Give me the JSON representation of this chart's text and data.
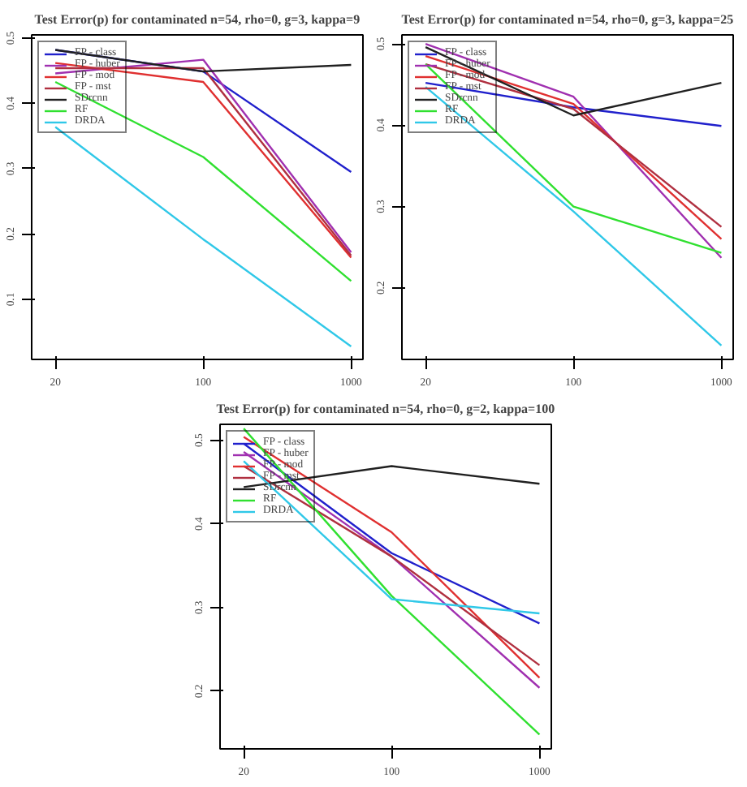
{
  "chart_data": [
    {
      "type": "line",
      "title": "Test Error(p) for contaminated n=54, rho=0, g=3, kappa=9",
      "categories": [
        "20",
        "100",
        "1000"
      ],
      "ylim": [
        0.008,
        0.505
      ],
      "yticks": [
        0.1,
        0.2,
        0.3,
        0.4,
        0.5
      ],
      "grid": false,
      "legend": "top left",
      "marker": "none",
      "line_style": "solid",
      "series": [
        {
          "name": "FP - class",
          "color": "#2020cc",
          "values": [
            0.482,
            0.449,
            0.295
          ]
        },
        {
          "name": "FP - huber",
          "color": "#a030b0",
          "values": [
            0.446,
            0.467,
            0.172
          ]
        },
        {
          "name": "FP - mod",
          "color": "#e03030",
          "values": [
            0.462,
            0.433,
            0.164
          ]
        },
        {
          "name": "FP - mst",
          "color": "#b03040",
          "values": [
            0.454,
            0.454,
            0.167
          ]
        },
        {
          "name": "SDrcnn",
          "color": "#202020",
          "values": [
            0.482,
            0.449,
            0.459
          ]
        },
        {
          "name": "RF",
          "color": "#30e030",
          "values": [
            0.433,
            0.318,
            0.128
          ]
        },
        {
          "name": "DRDA",
          "color": "#30c8e8",
          "values": [
            0.364,
            0.192,
            0.028
          ]
        }
      ]
    },
    {
      "type": "line",
      "title": "Test Error(p) for contaminated n=54, rho=0, g=3, kappa=25",
      "categories": [
        "20",
        "100",
        "1000"
      ],
      "ylim": [
        0.112,
        0.511
      ],
      "yticks": [
        0.2,
        0.3,
        0.4,
        0.5
      ],
      "grid": false,
      "legend": "top left",
      "marker": "none",
      "line_style": "solid",
      "series": [
        {
          "name": "FP - class",
          "color": "#2020cc",
          "values": [
            0.452,
            0.422,
            0.399
          ]
        },
        {
          "name": "FP - huber",
          "color": "#a030b0",
          "values": [
            0.5,
            0.435,
            0.237
          ]
        },
        {
          "name": "FP - mod",
          "color": "#e03030",
          "values": [
            0.485,
            0.426,
            0.26
          ]
        },
        {
          "name": "FP - mst",
          "color": "#b03040",
          "values": [
            0.475,
            0.42,
            0.275
          ]
        },
        {
          "name": "SDrcnn",
          "color": "#202020",
          "values": [
            0.496,
            0.412,
            0.452
          ]
        },
        {
          "name": "RF",
          "color": "#30e030",
          "values": [
            0.475,
            0.3,
            0.243
          ]
        },
        {
          "name": "DRDA",
          "color": "#30c8e8",
          "values": [
            0.447,
            0.294,
            0.129
          ]
        }
      ]
    },
    {
      "type": "line",
      "title": "Test Error(p) for contaminated n=54, rho=0, g=2, kappa=100",
      "categories": [
        "20",
        "100",
        "1000"
      ],
      "ylim": [
        0.131,
        0.519
      ],
      "yticks": [
        0.2,
        0.3,
        0.4,
        0.5
      ],
      "grid": false,
      "legend": "top left",
      "marker": "none",
      "line_style": "solid",
      "series": [
        {
          "name": "FP - class",
          "color": "#2020cc",
          "values": [
            0.496,
            0.365,
            0.281
          ]
        },
        {
          "name": "FP - huber",
          "color": "#a030b0",
          "values": [
            0.486,
            0.361,
            0.204
          ]
        },
        {
          "name": "FP - mod",
          "color": "#e03030",
          "values": [
            0.504,
            0.39,
            0.216
          ]
        },
        {
          "name": "FP - mst",
          "color": "#b03040",
          "values": [
            0.469,
            0.361,
            0.231
          ]
        },
        {
          "name": "SDrcnn",
          "color": "#202020",
          "values": [
            0.444,
            0.469,
            0.448
          ]
        },
        {
          "name": "RF",
          "color": "#30e030",
          "values": [
            0.514,
            0.314,
            0.148
          ]
        },
        {
          "name": "DRDA",
          "color": "#30c8e8",
          "values": [
            0.475,
            0.31,
            0.293
          ]
        }
      ]
    }
  ]
}
